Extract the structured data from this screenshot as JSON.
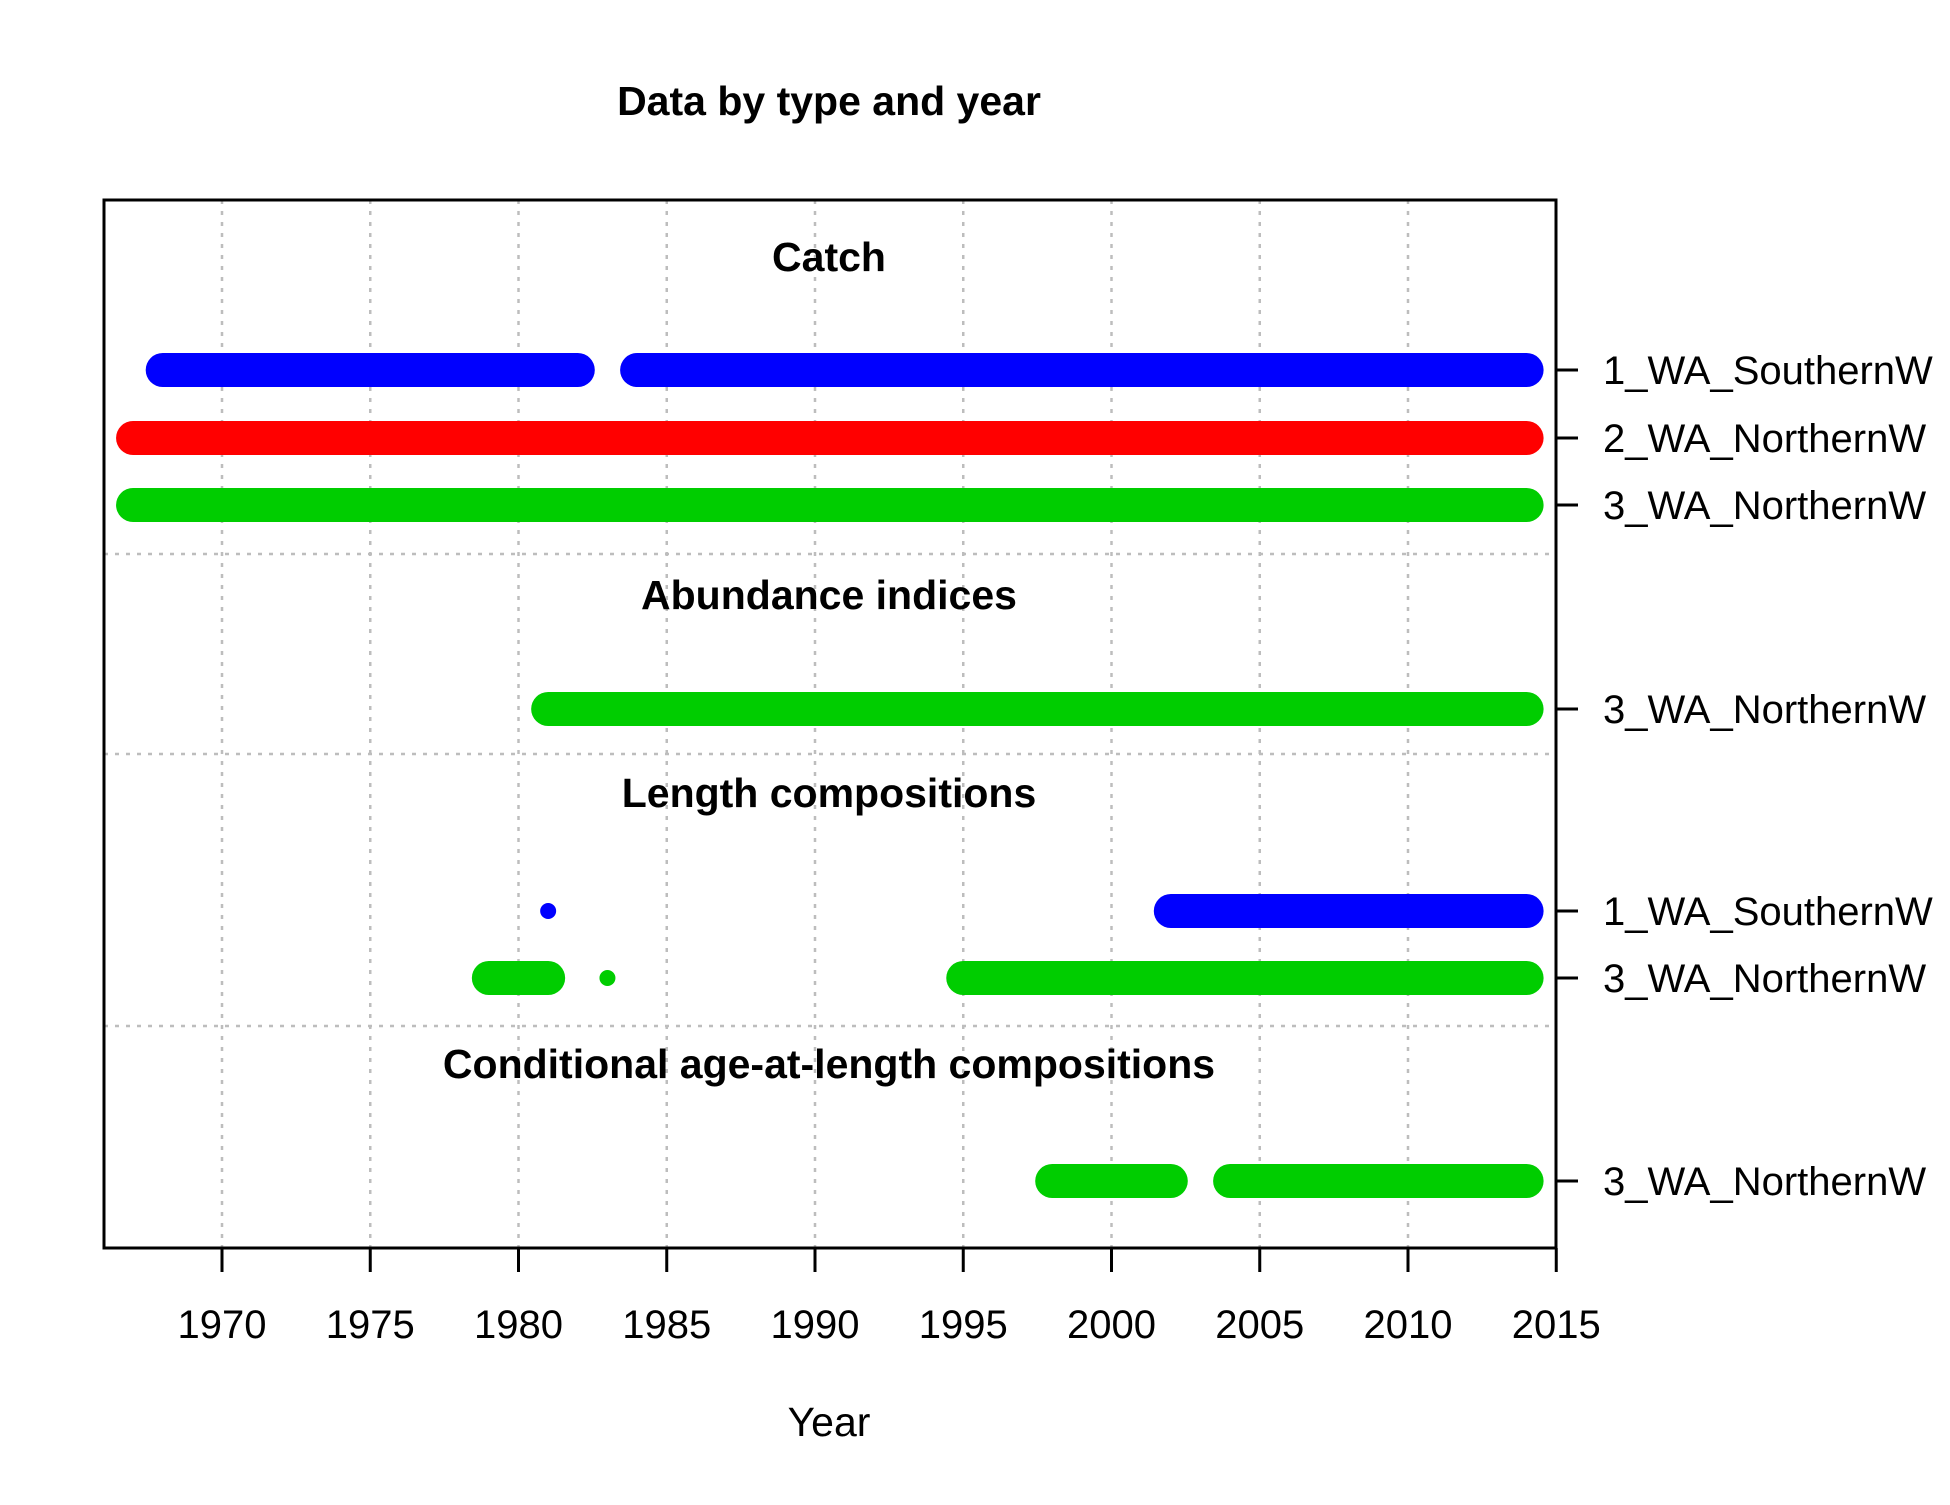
{
  "chart_data": {
    "type": "timeline",
    "title": "Data by type and year",
    "xlabel": "Year",
    "xlim": [
      1966,
      2015
    ],
    "xticks": [
      1970,
      1975,
      1980,
      1985,
      1990,
      1995,
      2000,
      2005,
      2010,
      2015
    ],
    "grid": true,
    "series_colors": {
      "1_WA_SouthernW": "#0000ff",
      "2_WA_NorthernW": "#ff0000",
      "3_WA_NorthernW": "#00cd00"
    },
    "sections": [
      {
        "title": "Catch",
        "rows": [
          {
            "label": "1_WA_SouthernW",
            "color": "#0000ff",
            "segments": [
              [
                1968,
                1982
              ],
              [
                1984,
                2014
              ]
            ]
          },
          {
            "label": "2_WA_NorthernW",
            "color": "#ff0000",
            "segments": [
              [
                1967,
                2014
              ]
            ]
          },
          {
            "label": "3_WA_NorthernW",
            "color": "#00cd00",
            "segments": [
              [
                1967,
                2014
              ]
            ]
          }
        ]
      },
      {
        "title": "Abundance indices",
        "rows": [
          {
            "label": "3_WA_NorthernW",
            "color": "#00cd00",
            "segments": [
              [
                1981,
                2014
              ]
            ]
          }
        ]
      },
      {
        "title": "Length compositions",
        "rows": [
          {
            "label": "1_WA_SouthernW",
            "color": "#0000ff",
            "segments": [
              [
                1981,
                1981
              ],
              [
                2002,
                2014
              ]
            ]
          },
          {
            "label": "3_WA_NorthernW",
            "color": "#00cd00",
            "segments": [
              [
                1979,
                1981
              ],
              [
                1983,
                1983
              ],
              [
                1995,
                2014
              ]
            ]
          }
        ]
      },
      {
        "title": "Conditional age-at-length compositions",
        "rows": [
          {
            "label": "3_WA_NorthernW",
            "color": "#00cd00",
            "segments": [
              [
                1998,
                2002
              ],
              [
                2004,
                2014
              ]
            ]
          }
        ]
      }
    ]
  }
}
